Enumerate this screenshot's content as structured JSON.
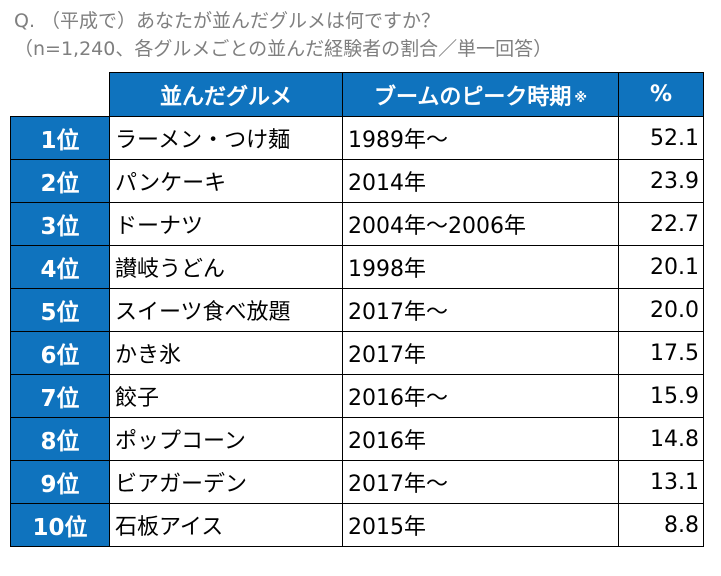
{
  "question": {
    "line1": "Q. （平成で）あなたが並んだグルメは何ですか？",
    "line2": "（n=1,240、各グルメごとの並んだ経験者の割合／単一回答）"
  },
  "chart_data": {
    "type": "table",
    "columns": [
      "",
      "並んだグルメ",
      "ブームのピーク時期",
      "%"
    ],
    "note_mark": "※",
    "rows": [
      {
        "rank": "1位",
        "name": "ラーメン・つけ麺",
        "peak": "1989年〜",
        "pct": "52.1"
      },
      {
        "rank": "2位",
        "name": "パンケーキ",
        "peak": "2014年",
        "pct": "23.9"
      },
      {
        "rank": "3位",
        "name": "ドーナツ",
        "peak": "2004年〜2006年",
        "pct": "22.7"
      },
      {
        "rank": "4位",
        "name": "讃岐うどん",
        "peak": "1998年",
        "pct": "20.1"
      },
      {
        "rank": "5位",
        "name": "スイーツ食べ放題",
        "peak": "2017年〜",
        "pct": "20.0"
      },
      {
        "rank": "6位",
        "name": "かき氷",
        "peak": "2017年",
        "pct": "17.5"
      },
      {
        "rank": "7位",
        "name": "餃子",
        "peak": "2016年〜",
        "pct": "15.9"
      },
      {
        "rank": "8位",
        "name": "ポップコーン",
        "peak": "2016年",
        "pct": "14.8"
      },
      {
        "rank": "9位",
        "name": "ビアガーデン",
        "peak": "2017年〜",
        "pct": "13.1"
      },
      {
        "rank": "10位",
        "name": "石板アイス",
        "peak": "2015年",
        "pct": "8.8"
      }
    ],
    "header_color": "#0f73be"
  }
}
